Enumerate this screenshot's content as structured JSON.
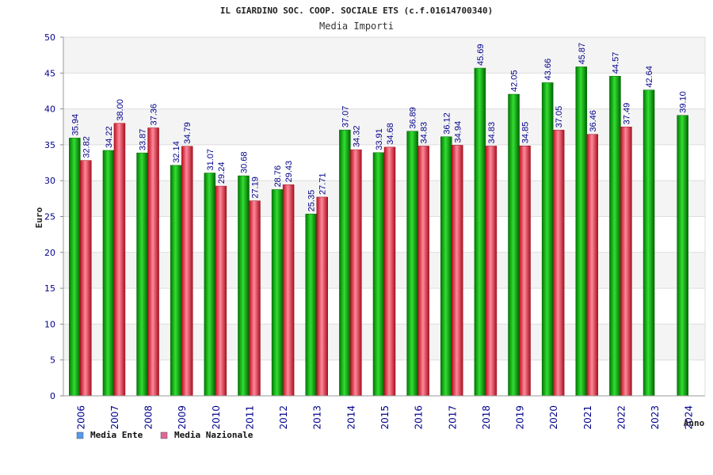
{
  "chart_data": {
    "type": "bar",
    "title": "IL GIARDINO SOC. COOP. SOCIALE ETS (c.f.01614700340)",
    "subtitle": "Media Importi",
    "xlabel": "Anno",
    "ylabel": "Euro",
    "ylim": [
      0,
      50
    ],
    "yticks": [
      0,
      5,
      10,
      15,
      20,
      25,
      30,
      35,
      40,
      45,
      50
    ],
    "categories": [
      "2006",
      "2007",
      "2008",
      "2009",
      "2010",
      "2011",
      "2012",
      "2013",
      "2014",
      "2015",
      "2016",
      "2017",
      "2018",
      "2019",
      "2020",
      "2021",
      "2022",
      "2023",
      "2024"
    ],
    "series": [
      {
        "name": "Media Ente",
        "color": "#00aa00",
        "values": [
          35.94,
          34.22,
          33.87,
          32.14,
          31.07,
          30.68,
          28.76,
          25.35,
          37.07,
          33.91,
          36.89,
          36.12,
          45.69,
          42.05,
          43.66,
          45.87,
          44.57,
          42.64,
          39.1
        ],
        "labels": [
          "35.94",
          "34.22",
          "33.87",
          "32.14",
          "31.07",
          "30.68",
          "28.76",
          "25.35",
          "37.07",
          "33.91",
          "36.89",
          "36.12",
          "45.69",
          "42.05",
          "43.66",
          "45.87",
          "44.57",
          "42.64",
          "39.10"
        ]
      },
      {
        "name": "Media Nazionale",
        "color": "#dd2233",
        "values": [
          32.82,
          38.0,
          37.36,
          34.79,
          29.24,
          27.19,
          29.43,
          27.71,
          34.32,
          34.68,
          34.83,
          34.94,
          34.83,
          34.85,
          37.05,
          36.46,
          37.49,
          null,
          null
        ],
        "labels": [
          "32.82",
          "38.00",
          "37.36",
          "34.79",
          "29.24",
          "27.19",
          "29.43",
          "27.71",
          "34.32",
          "34.68",
          "34.83",
          "34.94",
          "34.83",
          "34.85",
          "37.05",
          "36.46",
          "37.49",
          null,
          null
        ]
      }
    ],
    "legend": {
      "position": "bottom-left",
      "items": [
        {
          "label": "Media Ente",
          "swatch": "#5599ee"
        },
        {
          "label": "Media Nazionale",
          "swatch": "#dd6699"
        }
      ]
    },
    "grid": true,
    "band_colors": [
      "#f4f4f4",
      "#ffffff"
    ]
  }
}
